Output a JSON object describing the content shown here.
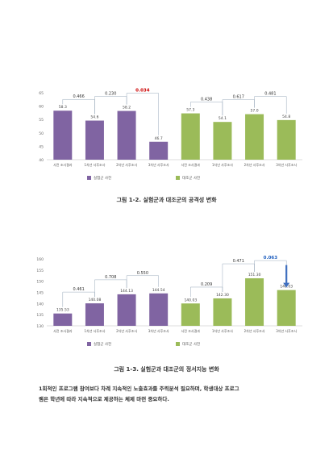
{
  "header_text": "",
  "charts": [
    {
      "type": "bar",
      "title": "",
      "yticks": [
        "65",
        "60",
        "55",
        "50",
        "45",
        "40"
      ],
      "ylim": [
        40,
        65
      ],
      "categories": [
        "사전 조사결과",
        "1차년 사후조사",
        "2차년 사후조사",
        "3차년 사후조사",
        "사전 조사결과",
        "1차년 사후조사",
        "2차년 사후조사",
        "3차년 사후조사"
      ],
      "values": [
        58.3,
        54.6,
        58.2,
        46.7,
        57.3,
        54.1,
        57.0,
        54.8
      ],
      "value_labels": [
        "58.3",
        "54.6",
        "58.2",
        "46.7",
        "57.3",
        "54.1",
        "57.0",
        "54.8"
      ],
      "colors": [
        "#8064a2",
        "#8064a2",
        "#8064a2",
        "#8064a2",
        "#9bbb59",
        "#9bbb59",
        "#9bbb59",
        "#9bbb59"
      ],
      "p_values": [
        {
          "from": 0,
          "to": 1,
          "label": "0.466",
          "color": "#333333"
        },
        {
          "from": 1,
          "to": 2,
          "label": "0.230",
          "color": "#333333"
        },
        {
          "from": 2,
          "to": 3,
          "label": "0.034",
          "color": "#cc0000"
        },
        {
          "from": 4,
          "to": 5,
          "label": "0.438",
          "color": "#333333"
        },
        {
          "from": 5,
          "to": 6,
          "label": "0.617",
          "color": "#333333"
        },
        {
          "from": 6,
          "to": 7,
          "label": "0.481",
          "color": "#333333"
        }
      ],
      "legend": [
        {
          "name": "실험군 사전",
          "color": "#8064a2"
        },
        {
          "name": "대조군 사전",
          "color": "#9bbb59"
        }
      ]
    },
    {
      "type": "bar",
      "title": "",
      "yticks": [
        "160",
        "155",
        "150",
        "145",
        "140",
        "135",
        "130"
      ],
      "ylim": [
        130,
        160
      ],
      "categories": [
        "사전 조사결과",
        "1차년 사후조사",
        "2차년 사후조사",
        "3차년 사후조사",
        "사전 조사결과",
        "1차년 사후조사",
        "2차년 사후조사",
        "3차년 사후조사"
      ],
      "values": [
        135.53,
        140.08,
        144.13,
        144.54,
        140.03,
        142.3,
        151.3,
        146.03
      ],
      "value_labels": [
        "135.53",
        "140.08",
        "144.13",
        "144.54",
        "140.03",
        "142.30",
        "151.30",
        "146.03"
      ],
      "colors": [
        "#8064a2",
        "#8064a2",
        "#8064a2",
        "#8064a2",
        "#9bbb59",
        "#9bbb59",
        "#9bbb59",
        "#9bbb59"
      ],
      "p_values": [
        {
          "from": 0,
          "to": 1,
          "label": "0.461",
          "color": "#333333"
        },
        {
          "from": 1,
          "to": 2,
          "label": "0.708",
          "color": "#333333"
        },
        {
          "from": 2,
          "to": 3,
          "label": "0.550",
          "color": "#333333"
        },
        {
          "from": 4,
          "to": 5,
          "label": "0.209",
          "color": "#333333"
        },
        {
          "from": 5,
          "to": 6,
          "label": "0.471",
          "color": "#333333"
        },
        {
          "from": 6,
          "to": 7,
          "label": "0.063",
          "color": "#1f5fbf"
        }
      ],
      "legend": [
        {
          "name": "실험군 사전",
          "color": "#8064a2"
        },
        {
          "name": "대조군 사전",
          "color": "#9bbb59"
        }
      ]
    }
  ],
  "captions": {
    "fig1": "그림 1-2. 실험군과 대조군의 공격성 변화",
    "fig2": "그림 1-3. 실험군과 대조군의 정서지능 변화"
  },
  "paragraph": {
    "line1": "1회적인 프로그램 참여보다 차례 지속적인 노출효과를 주력분석 필요하며, 학생대상 프로그",
    "line2": "램은 학년에 따라 지속적으로 제공하는 체제 마련 중요하다."
  }
}
